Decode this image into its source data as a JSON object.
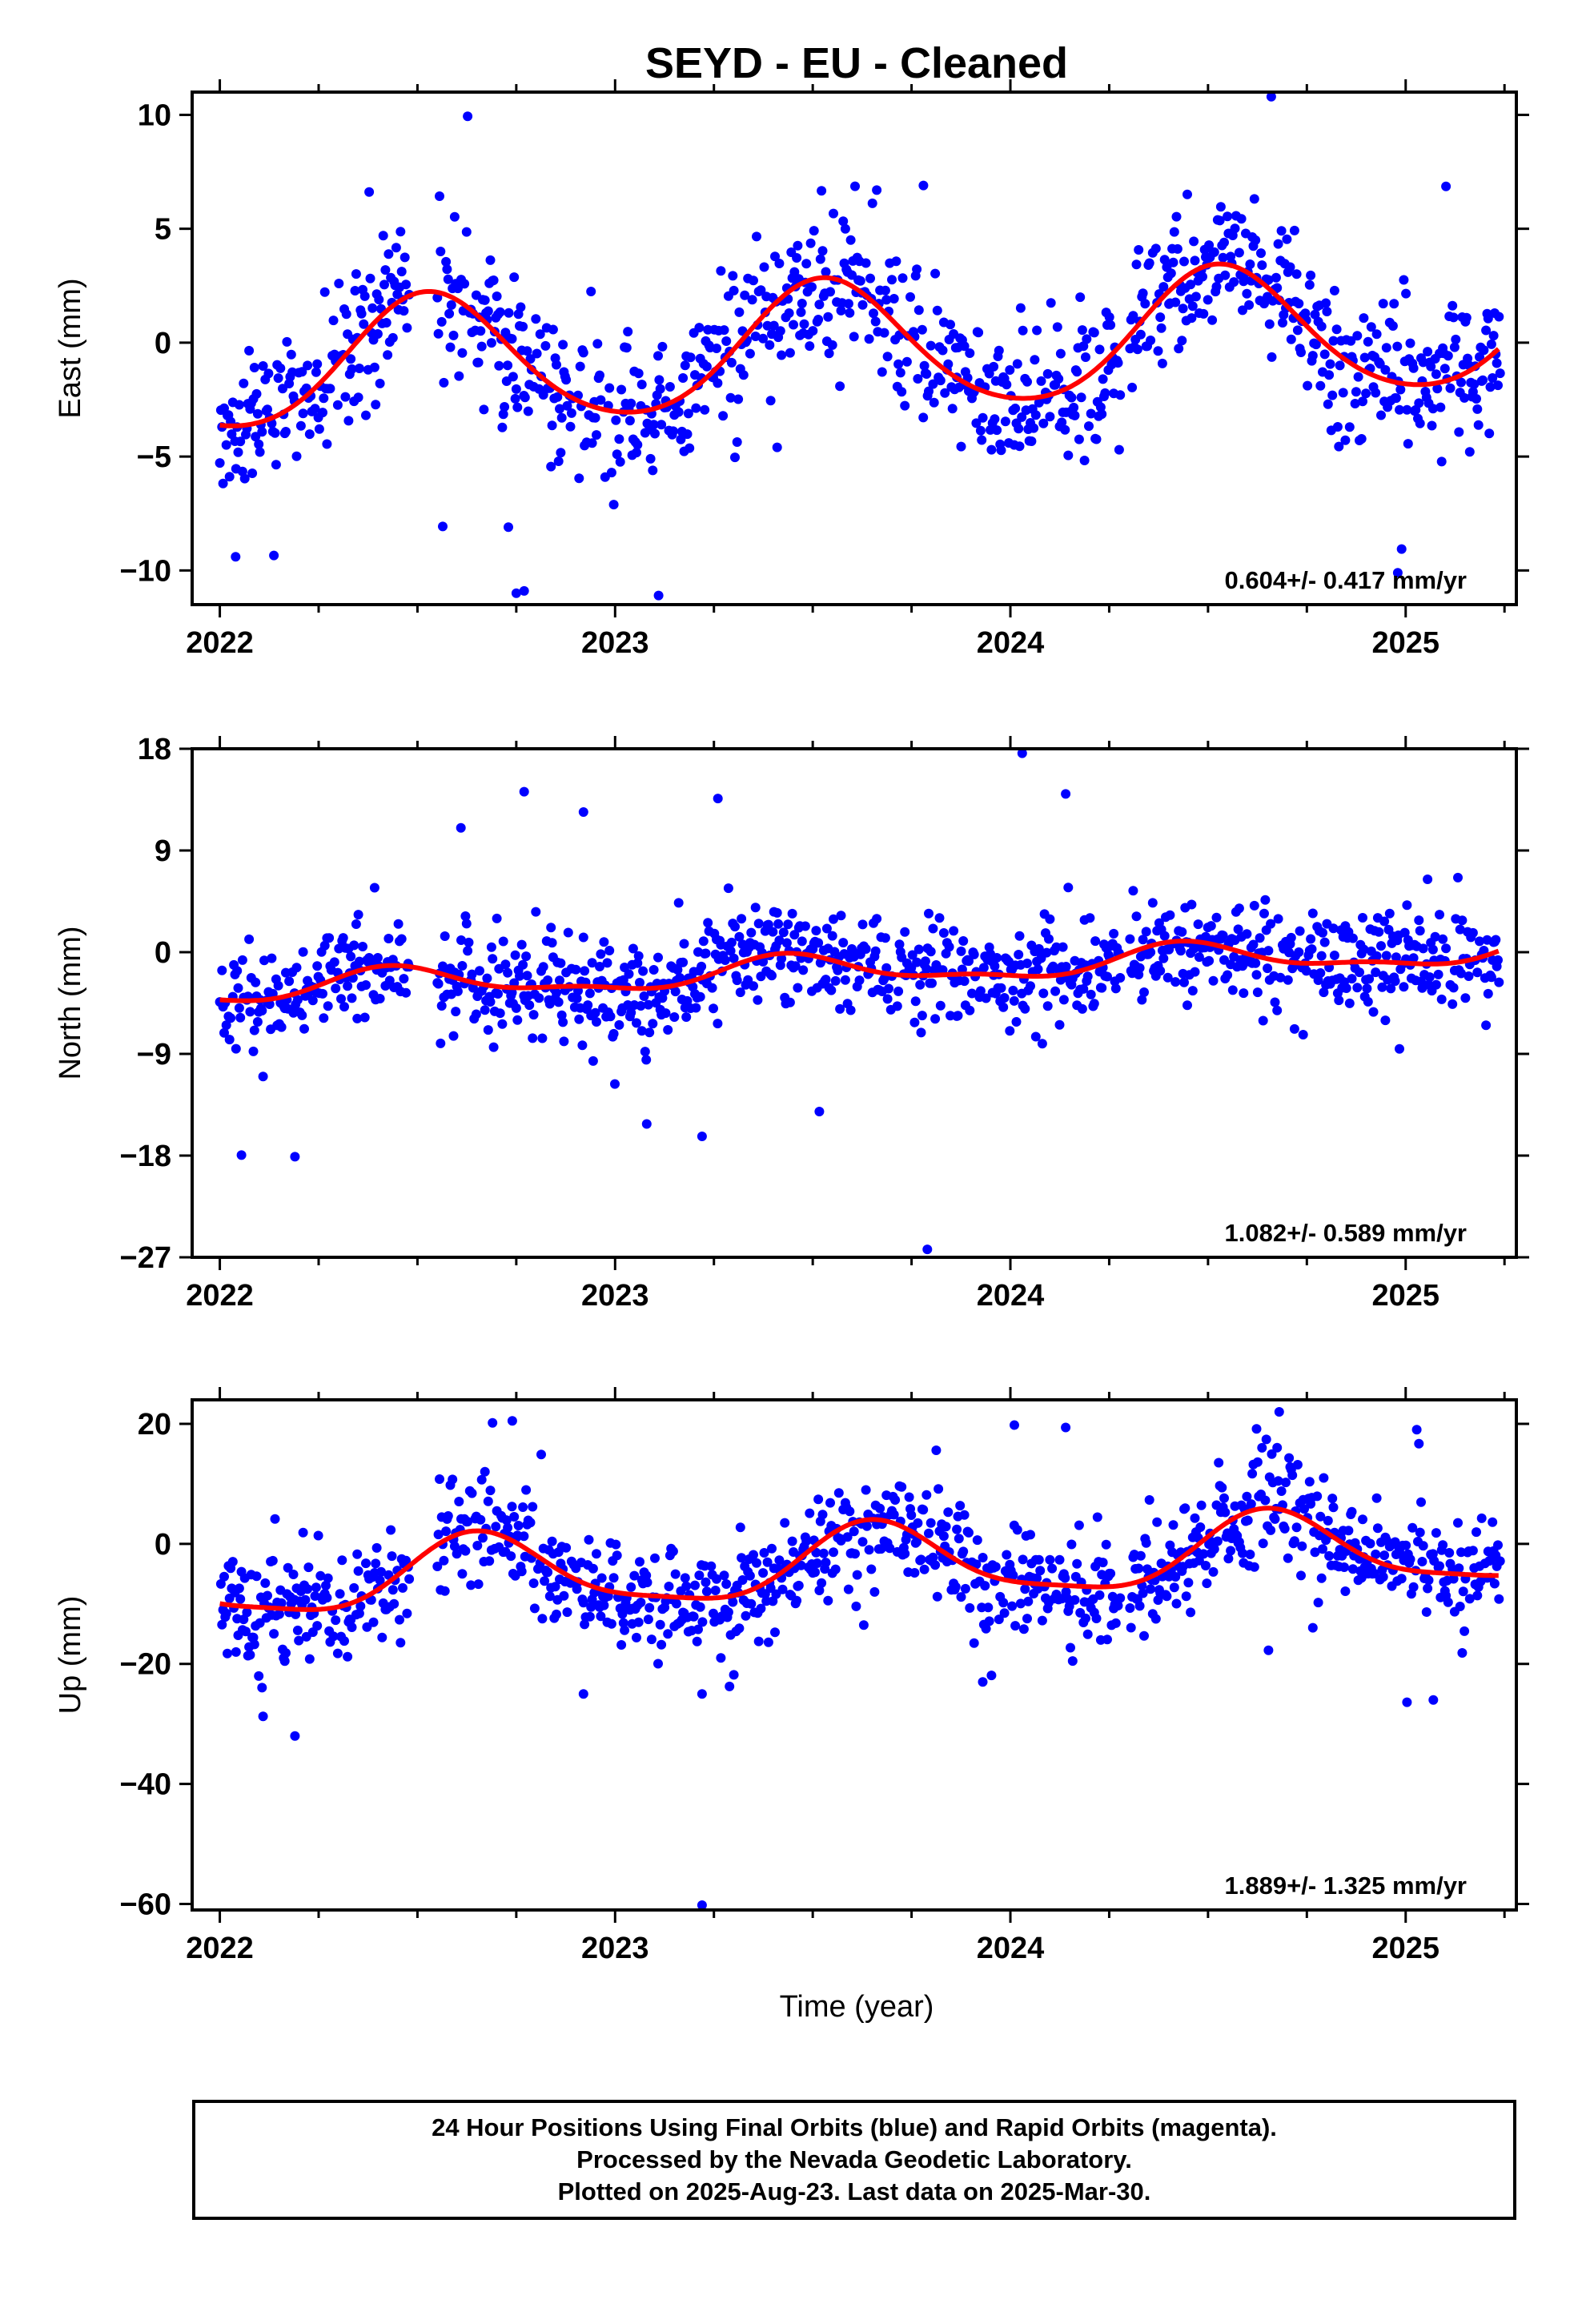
{
  "figure": {
    "title": "SEYD  - EU - Cleaned",
    "xlabel": "Time (year)"
  },
  "colors": {
    "final_orbits": "#0000ff",
    "rapid_orbits": "#ff00ff",
    "model_fit": "#ff0000",
    "frame": "#000000"
  },
  "footer": {
    "lines": [
      "24 Hour Positions Using Final Orbits (blue) and Rapid Orbits (magenta).",
      "Processed by the Nevada Geodetic Laboratory.",
      "Plotted on 2025-Aug-23. Last data on 2025-Mar-30."
    ]
  },
  "chart_data": [
    {
      "type": "scatter",
      "component": "east",
      "ylabel": "East (mm)",
      "xlim": [
        2021.93,
        2025.28
      ],
      "ylim": [
        -11.5,
        11
      ],
      "yticks": [
        -10,
        -5,
        0,
        5,
        10
      ],
      "xticks": [
        2022,
        2023,
        2024,
        2025
      ],
      "rate_label": "0.604+/- 0.417 mm/yr",
      "model": {
        "offset": -0.2,
        "trend": 0.604,
        "annual_amp": 2.8,
        "annual_peak": 2022.53,
        "semi_amp": 0.3,
        "semi_phase": 0.2
      },
      "scatter": {
        "sigma": 1.6,
        "outliers": [
          [
            2022.04,
            -9.4
          ],
          [
            2022.75,
            -11.0
          ],
          [
            2022.77,
            -10.9
          ],
          [
            2023.11,
            -11.1
          ],
          [
            2023.78,
            6.9
          ],
          [
            2024.66,
            10.8
          ],
          [
            2024.98,
            -10.1
          ],
          [
            2022.73,
            -8.1
          ]
        ]
      }
    },
    {
      "type": "scatter",
      "component": "north",
      "ylabel": "North (mm)",
      "xlim": [
        2021.93,
        2025.28
      ],
      "ylim": [
        -27,
        18
      ],
      "yticks": [
        -27,
        -18,
        -9,
        0,
        9,
        18
      ],
      "xticks": [
        2022,
        2023,
        2024,
        2025
      ],
      "rate_label": "1.082+/- 0.589 mm/yr",
      "model": {
        "offset": -1.6,
        "trend": 1.082,
        "annual_amp": 1.2,
        "annual_peak": 2022.45,
        "semi_amp": 0.5,
        "semi_phase": 0.4
      },
      "scatter": {
        "sigma": 2.1,
        "outliers": [
          [
            2022.77,
            14.2
          ],
          [
            2023.26,
            13.6
          ],
          [
            2024.03,
            17.6
          ],
          [
            2024.14,
            14.0
          ],
          [
            2023.79,
            -26.3
          ],
          [
            2022.19,
            -18.1
          ],
          [
            2023.08,
            -15.2
          ],
          [
            2023.22,
            -16.3
          ],
          [
            2022.61,
            11.0
          ],
          [
            2022.92,
            12.4
          ]
        ]
      }
    },
    {
      "type": "scatter",
      "component": "up",
      "ylabel": "Up (mm)",
      "xlim": [
        2021.93,
        2025.28
      ],
      "ylim": [
        -61,
        24
      ],
      "yticks": [
        -60,
        -40,
        -20,
        0,
        20
      ],
      "xticks": [
        2022,
        2023,
        2024,
        2025
      ],
      "rate_label": "1.889+/- 1.325 mm/yr",
      "model": {
        "offset": -3.5,
        "trend": 1.889,
        "annual_amp": 6.0,
        "annual_peak": 2022.66,
        "semi_amp": 1.5,
        "semi_phase": 0.3
      },
      "scatter": {
        "sigma": 4.5,
        "outliers": [
          [
            2023.22,
            -60.2
          ],
          [
            2022.19,
            -32.0
          ],
          [
            2025.07,
            -26.0
          ],
          [
            2022.92,
            -25.0
          ],
          [
            2023.22,
            -25.0
          ],
          [
            2024.68,
            22.0
          ],
          [
            2024.01,
            19.8
          ],
          [
            2024.14,
            19.4
          ],
          [
            2022.74,
            20.5
          ],
          [
            2023.93,
            -23.0
          ]
        ]
      }
    }
  ]
}
